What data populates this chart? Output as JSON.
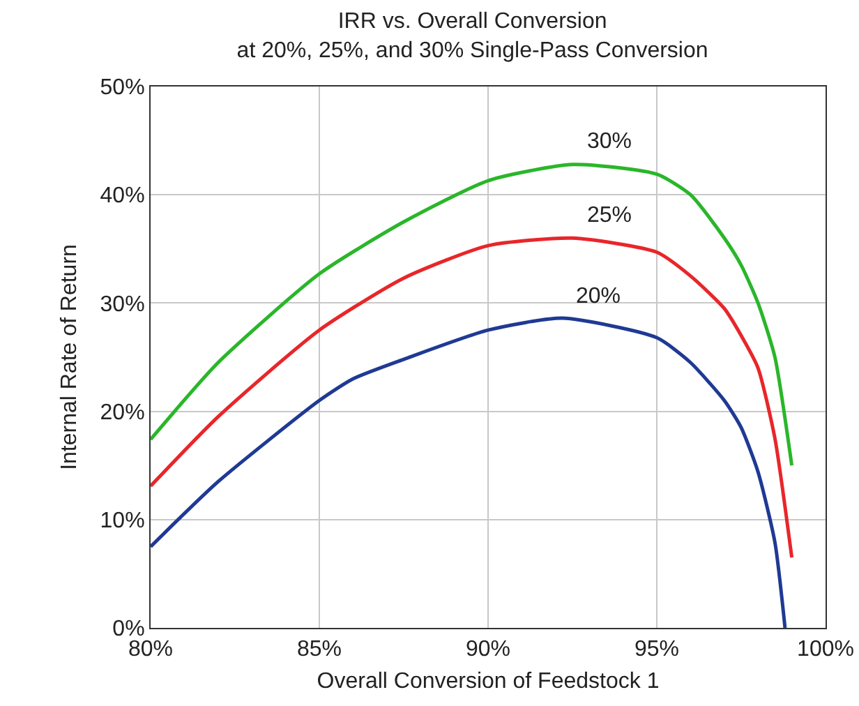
{
  "chart_data": {
    "type": "line",
    "title": "IRR vs. Overall Conversion\nat 20%, 25%, and 30% Single-Pass Conversion",
    "xlabel": "Overall Conversion of Feedstock 1",
    "ylabel": "Internal Rate of Return",
    "series": [
      {
        "name": "30%",
        "color": "#2ab62a",
        "x": [
          80,
          82,
          85,
          87.5,
          90,
          92.5,
          95,
          96,
          97,
          97.5,
          98,
          98.5,
          99
        ],
        "values": [
          17.4,
          24.5,
          32.7,
          37.5,
          41.3,
          42.8,
          41.9,
          40,
          36,
          33.5,
          30,
          25,
          15
        ]
      },
      {
        "name": "25%",
        "color": "#e8262a",
        "x": [
          80,
          82,
          85,
          87.5,
          90,
          92.5,
          95,
          96,
          97,
          97.5,
          98,
          98.5,
          99
        ],
        "values": [
          13.1,
          19.5,
          27.5,
          32.3,
          35.3,
          36,
          34.7,
          32.5,
          29.5,
          27,
          24,
          17.5,
          6.5
        ]
      },
      {
        "name": "20%",
        "color": "#1f3a93",
        "x": [
          80,
          82,
          85,
          86,
          87.5,
          90,
          92.2,
          95,
          96,
          97,
          97.5,
          98,
          98.5,
          98.8
        ],
        "values": [
          7.5,
          13.5,
          21,
          23,
          24.8,
          27.5,
          28.6,
          26.8,
          24.5,
          21,
          18.5,
          14.4,
          7.9,
          0
        ]
      }
    ],
    "xlim": [
      80,
      100
    ],
    "xticks": [
      {
        "value": 80,
        "label": "80%"
      },
      {
        "value": 85,
        "label": "85%"
      },
      {
        "value": 90,
        "label": "90%"
      },
      {
        "value": 95,
        "label": "95%"
      },
      {
        "value": 100,
        "label": "100%"
      }
    ],
    "ylim": [
      0,
      50
    ],
    "yticks": [
      {
        "value": 0,
        "label": "0%"
      },
      {
        "value": 10,
        "label": "10%"
      },
      {
        "value": 20,
        "label": "20%"
      },
      {
        "value": 30,
        "label": "30%"
      },
      {
        "value": 40,
        "label": "40%"
      },
      {
        "value": 50,
        "label": "50%"
      }
    ],
    "grid": true,
    "legend": false,
    "marker": "none",
    "line_style": "solid"
  }
}
